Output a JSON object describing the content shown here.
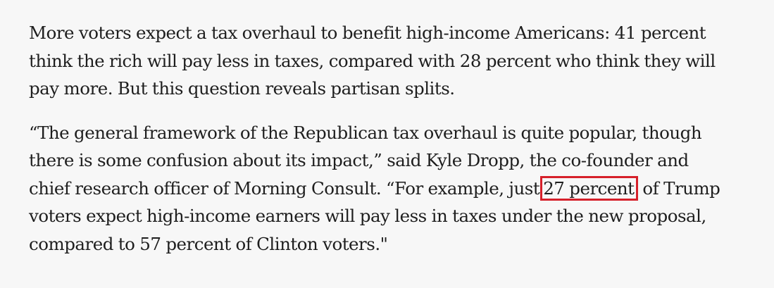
{
  "article": {
    "paragraph_1": {
      "lines": [
        "More voters expect a tax overhaul to benefit high-income Americans: 41 percent",
        "think the rich will pay less in taxes, compared with 28 percent who think they will",
        "pay more. But this question reveals partisan splits."
      ]
    },
    "paragraph_2": {
      "line_1": "“The general framework of the Republican tax overhaul is quite popular, though",
      "line_2": "there is some confusion about its impact,” said Kyle Dropp, the co-founder and",
      "line_3_before": "chief research officer of Morning Consult. “For example, just",
      "line_3_highlight": "27 percent",
      "line_3_after": " of Trump",
      "line_4": "voters expect high-income earners will pay less in taxes under the new proposal,",
      "line_5": "compared to 57 percent of Clinton voters.\""
    },
    "highlight_color": "#d6202a"
  }
}
